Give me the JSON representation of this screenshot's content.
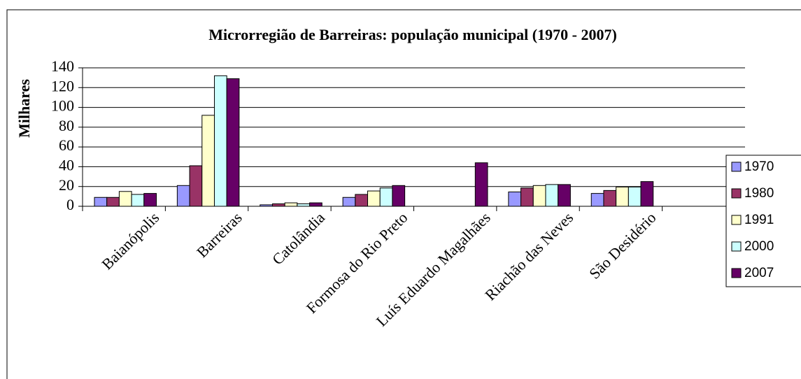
{
  "chart_data": {
    "type": "bar",
    "title": "Microrregião de Barreiras: população municipal (1970 - 2007)",
    "y_label": "Milhares",
    "categories": [
      "Baianópolis",
      "Barreiras",
      "Catolândia",
      "Formosa do Rio Preto",
      "Luís Eduardo Magalhães",
      "Riachão das Neves",
      "São Desidério",
      null
    ],
    "series": [
      {
        "name": "1970",
        "color": "#9999ff",
        "values": [
          9,
          21,
          1.5,
          9,
          null,
          14.5,
          13,
          null
        ]
      },
      {
        "name": "1980",
        "color": "#993366",
        "values": [
          9,
          41,
          2.5,
          12,
          null,
          18.5,
          16,
          null
        ]
      },
      {
        "name": "1991",
        "color": "#ffffcc",
        "values": [
          15,
          92,
          3.5,
          15.5,
          null,
          21,
          19.5,
          null
        ]
      },
      {
        "name": "2000",
        "color": "#ccffff",
        "values": [
          12,
          132,
          2.5,
          18.5,
          null,
          22,
          19.5,
          null
        ]
      },
      {
        "name": "2007",
        "color": "#660066",
        "values": [
          13,
          129,
          3.5,
          21,
          44,
          22,
          25,
          null
        ]
      }
    ],
    "ylim": [
      0,
      140
    ],
    "yticks": [
      0,
      20,
      40,
      60,
      80,
      100,
      120,
      140
    ],
    "grid": true,
    "legend": "right"
  }
}
